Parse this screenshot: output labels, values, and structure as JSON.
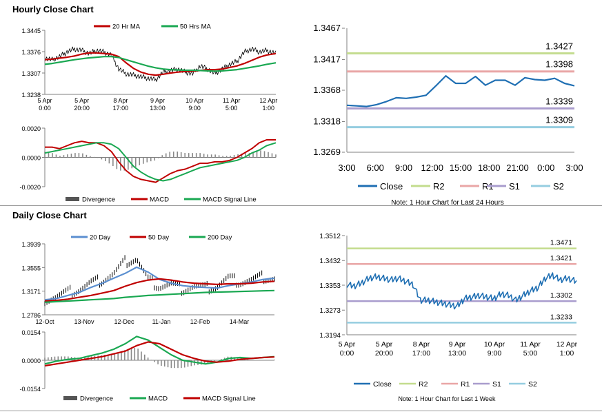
{
  "sections": {
    "hourly_title": "Hourly Close Chart",
    "daily_title": "Daily Close Chart"
  },
  "colors": {
    "price": "#000000",
    "ma_red": "#c00000",
    "ma_green": "#1aa852",
    "ma_blue": "#5b8fd0",
    "close": "#1f6fb3",
    "r2": "#c3dc8d",
    "r1": "#e9a6a6",
    "s1": "#a99ccd",
    "s2": "#95cde0",
    "divergence": "#888888"
  },
  "chart_data": [
    {
      "id": "hourly_price",
      "type": "line",
      "legend": [
        "20 Hr MA",
        "50 Hrs MA"
      ],
      "yticks": [
        "1.3445",
        "1.3376",
        "1.3307",
        "1.3238"
      ],
      "ylim": [
        1.3238,
        1.3445
      ],
      "xticks": [
        {
          "x": 0,
          "l1": "5 Apr",
          "l2": "0:00"
        },
        {
          "x": 20,
          "l1": "5 Apr",
          "l2": "20:00"
        },
        {
          "x": 41,
          "l1": "8 Apr",
          "l2": "17:00"
        },
        {
          "x": 61,
          "l1": "9 Apr",
          "l2": "13:00"
        },
        {
          "x": 81,
          "l1": "10 Apr",
          "l2": "9:00"
        },
        {
          "x": 101,
          "l1": "11 Apr",
          "l2": "5:00"
        },
        {
          "x": 121,
          "l1": "12 Apr",
          "l2": "1:00"
        }
      ],
      "xlim": [
        0,
        125
      ],
      "kx": [
        0,
        4,
        8,
        12,
        16,
        20,
        24,
        28,
        32,
        36,
        40,
        44,
        48,
        52,
        56,
        60,
        64,
        68,
        72,
        76,
        80,
        84,
        88,
        92,
        96,
        100,
        104,
        108,
        112,
        116,
        120,
        125
      ],
      "price": [
        1.3355,
        1.335,
        1.336,
        1.3375,
        1.3385,
        1.338,
        1.337,
        1.338,
        1.3375,
        1.3365,
        1.332,
        1.3305,
        1.33,
        1.3295,
        1.329,
        1.3285,
        1.331,
        1.3315,
        1.332,
        1.331,
        1.3305,
        1.333,
        1.332,
        1.3305,
        1.332,
        1.3335,
        1.3345,
        1.3375,
        1.3385,
        1.3375,
        1.338,
        1.337
      ],
      "ma20": [
        1.335,
        1.3352,
        1.3355,
        1.3358,
        1.3362,
        1.3368,
        1.3372,
        1.3372,
        1.337,
        1.3368,
        1.336,
        1.334,
        1.3322,
        1.331,
        1.3303,
        1.33,
        1.3303,
        1.3307,
        1.331,
        1.3312,
        1.3313,
        1.3315,
        1.3318,
        1.3318,
        1.332,
        1.3325,
        1.333,
        1.3338,
        1.3348,
        1.3358,
        1.3365,
        1.337
      ],
      "ma50": [
        1.3335,
        1.3338,
        1.3342,
        1.3346,
        1.335,
        1.3353,
        1.3356,
        1.3358,
        1.336,
        1.336,
        1.3357,
        1.335,
        1.3343,
        1.3336,
        1.3329,
        1.3324,
        1.332,
        1.3318,
        1.3317,
        1.3316,
        1.3316,
        1.3315,
        1.3314,
        1.3313,
        1.3314,
        1.3316,
        1.3318,
        1.3322,
        1.3326,
        1.333,
        1.3335,
        1.334
      ]
    },
    {
      "id": "hourly_macd",
      "type": "line",
      "legend": [
        "Divergence",
        "MACD",
        "MACD Signal Line"
      ],
      "yticks": [
        "0.0020",
        "0.0000",
        "-0.0020"
      ],
      "ylim": [
        -0.002,
        0.002
      ],
      "xlim": [
        0,
        125
      ],
      "kx": [
        0,
        4,
        8,
        12,
        16,
        20,
        24,
        28,
        32,
        36,
        40,
        44,
        48,
        52,
        56,
        60,
        64,
        68,
        72,
        76,
        80,
        84,
        88,
        92,
        96,
        100,
        104,
        108,
        112,
        116,
        120,
        125
      ],
      "macd": [
        0.0007,
        0.0007,
        0.0006,
        0.0008,
        0.001,
        0.0011,
        0.001,
        0.001,
        0.0008,
        0.0004,
        -0.0003,
        -0.0009,
        -0.0013,
        -0.0015,
        -0.0016,
        -0.0017,
        -0.0014,
        -0.0011,
        -0.0009,
        -0.0008,
        -0.0006,
        -0.0004,
        -0.0004,
        -0.0003,
        -0.0003,
        -0.0002,
        0.0,
        0.0003,
        0.0006,
        0.001,
        0.0012,
        0.0012
      ],
      "signal": [
        0.0003,
        0.0004,
        0.0005,
        0.0006,
        0.0007,
        0.0008,
        0.0009,
        0.001,
        0.001,
        0.0009,
        0.0006,
        0.0,
        -0.0006,
        -0.001,
        -0.0013,
        -0.0015,
        -0.0016,
        -0.0015,
        -0.0013,
        -0.0011,
        -0.0009,
        -0.0007,
        -0.0006,
        -0.0005,
        -0.0004,
        -0.0003,
        -0.0002,
        0.0,
        0.0003,
        0.0005,
        0.0008,
        0.001
      ]
    },
    {
      "id": "hourly_pivot",
      "type": "line",
      "yticks": [
        "1.3467",
        "1.3417",
        "1.3368",
        "1.3318",
        "1.3269"
      ],
      "ylim": [
        1.3269,
        1.3467
      ],
      "xticks": [
        "3:00",
        "6:00",
        "9:00",
        "12:00",
        "15:00",
        "18:00",
        "21:00",
        "0:00",
        "3:00"
      ],
      "close": [
        1.3344,
        1.3343,
        1.3342,
        1.3345,
        1.335,
        1.3356,
        1.3355,
        1.3357,
        1.336,
        1.3375,
        1.3391,
        1.3379,
        1.3379,
        1.339,
        1.3376,
        1.3384,
        1.3384,
        1.3376,
        1.3388,
        1.3385,
        1.3384,
        1.3387,
        1.3379,
        1.3375
      ],
      "levels": [
        {
          "name": "R2",
          "value": 1.3427,
          "label": "1.3427"
        },
        {
          "name": "R1",
          "value": 1.3398,
          "label": "1.3398"
        },
        {
          "name": "S1",
          "value": 1.3339,
          "label": "1.3339"
        },
        {
          "name": "S2",
          "value": 1.3309,
          "label": "1.3309"
        }
      ],
      "legend": [
        "Close",
        "R2",
        "R1",
        "S1",
        "S2"
      ],
      "note": "Note: 1 Hour Chart for Last 24 Hours"
    },
    {
      "id": "daily_price",
      "type": "line",
      "legend": [
        "20 Day",
        "50 Day",
        "200 Day"
      ],
      "yticks": [
        "1.3939",
        "1.3555",
        "1.3171",
        "1.2786"
      ],
      "ylim": [
        1.2786,
        1.3939
      ],
      "xticks": [
        "12-Oct",
        "13-Nov",
        "12-Dec",
        "11-Jan",
        "12-Feb",
        "14-Mar"
      ],
      "kx": [
        0,
        5,
        10,
        15,
        20,
        25,
        30,
        35,
        40,
        45,
        50,
        55,
        60,
        65,
        70,
        75,
        80,
        85,
        90,
        95,
        100
      ],
      "price": [
        1.304,
        1.308,
        1.315,
        1.32,
        1.33,
        1.335,
        1.345,
        1.365,
        1.37,
        1.335,
        1.325,
        1.328,
        1.32,
        1.325,
        1.322,
        1.325,
        1.338,
        1.332,
        1.335,
        1.34,
        1.338
      ],
      "ma20": [
        1.303,
        1.305,
        1.31,
        1.315,
        1.323,
        1.33,
        1.338,
        1.346,
        1.356,
        1.348,
        1.336,
        1.33,
        1.326,
        1.324,
        1.323,
        1.322,
        1.326,
        1.329,
        1.332,
        1.336,
        1.338
      ],
      "ma50": [
        1.301,
        1.302,
        1.304,
        1.307,
        1.31,
        1.314,
        1.318,
        1.325,
        1.331,
        1.335,
        1.337,
        1.335,
        1.332,
        1.33,
        1.329,
        1.328,
        1.329,
        1.329,
        1.33,
        1.332,
        1.333
      ],
      "ma200": [
        1.299,
        1.3,
        1.301,
        1.302,
        1.303,
        1.304,
        1.305,
        1.307,
        1.3085,
        1.31,
        1.311,
        1.312,
        1.313,
        1.314,
        1.315,
        1.3155,
        1.316,
        1.3165,
        1.317,
        1.3175,
        1.318
      ]
    },
    {
      "id": "daily_macd",
      "type": "line",
      "legend": [
        "Divergence",
        "MACD",
        "MACD Signal Line"
      ],
      "yticks": [
        "0.0154",
        "0.0000",
        "-0.0154"
      ],
      "ylim": [
        -0.0154,
        0.0154
      ],
      "kx": [
        0,
        5,
        10,
        15,
        20,
        25,
        30,
        35,
        40,
        45,
        50,
        55,
        60,
        65,
        70,
        75,
        80,
        85,
        90,
        95,
        100
      ],
      "macd": [
        -0.002,
        -0.0005,
        0.0005,
        0.001,
        0.0025,
        0.004,
        0.006,
        0.009,
        0.013,
        0.011,
        0.007,
        0.003,
        0.0,
        -0.001,
        -0.002,
        -0.001,
        0.001,
        0.0015,
        0.001,
        0.0015,
        0.002
      ],
      "signal": [
        -0.003,
        -0.002,
        -0.001,
        0.0,
        0.001,
        0.002,
        0.0035,
        0.005,
        0.008,
        0.01,
        0.009,
        0.006,
        0.003,
        0.001,
        -0.0005,
        -0.001,
        -0.0005,
        0.0005,
        0.001,
        0.0015,
        0.0018
      ]
    },
    {
      "id": "daily_pivot",
      "type": "line",
      "yticks": [
        "1.3512",
        "1.3432",
        "1.3353",
        "1.3273",
        "1.3194"
      ],
      "ylim": [
        1.3194,
        1.3512
      ],
      "xticks": [
        {
          "l1": "5 Apr",
          "l2": "0:00"
        },
        {
          "l1": "5 Apr",
          "l2": "20:00"
        },
        {
          "l1": "8 Apr",
          "l2": "17:00"
        },
        {
          "l1": "9 Apr",
          "l2": "13:00"
        },
        {
          "l1": "10 Apr",
          "l2": "9:00"
        },
        {
          "l1": "11 Apr",
          "l2": "5:00"
        },
        {
          "l1": "12 Apr",
          "l2": "1:00"
        }
      ],
      "kx": [
        0,
        4,
        8,
        12,
        16,
        20,
        24,
        28,
        32,
        36,
        40,
        44,
        48,
        52,
        56,
        60,
        64,
        68,
        72,
        76,
        80,
        84,
        88,
        92,
        96,
        100,
        104,
        108,
        112,
        116,
        120,
        125
      ],
      "close": [
        1.3355,
        1.335,
        1.336,
        1.3375,
        1.338,
        1.3375,
        1.337,
        1.3375,
        1.3365,
        1.3355,
        1.3305,
        1.3305,
        1.33,
        1.3295,
        1.329,
        1.3285,
        1.331,
        1.3315,
        1.332,
        1.3315,
        1.331,
        1.3325,
        1.332,
        1.3305,
        1.332,
        1.3335,
        1.3345,
        1.3375,
        1.3385,
        1.337,
        1.3375,
        1.3365
      ],
      "levels": [
        {
          "name": "R2",
          "value": 1.3471,
          "label": "1.3471"
        },
        {
          "name": "R1",
          "value": 1.3421,
          "label": "1.3421"
        },
        {
          "name": "S1",
          "value": 1.3302,
          "label": "1.3302"
        },
        {
          "name": "S2",
          "value": 1.3233,
          "label": "1.3233"
        }
      ],
      "legend": [
        "Close",
        "R2",
        "R1",
        "S1",
        "S2"
      ],
      "note": "Note: 1 Hour Chart for Last 1 Week"
    }
  ]
}
